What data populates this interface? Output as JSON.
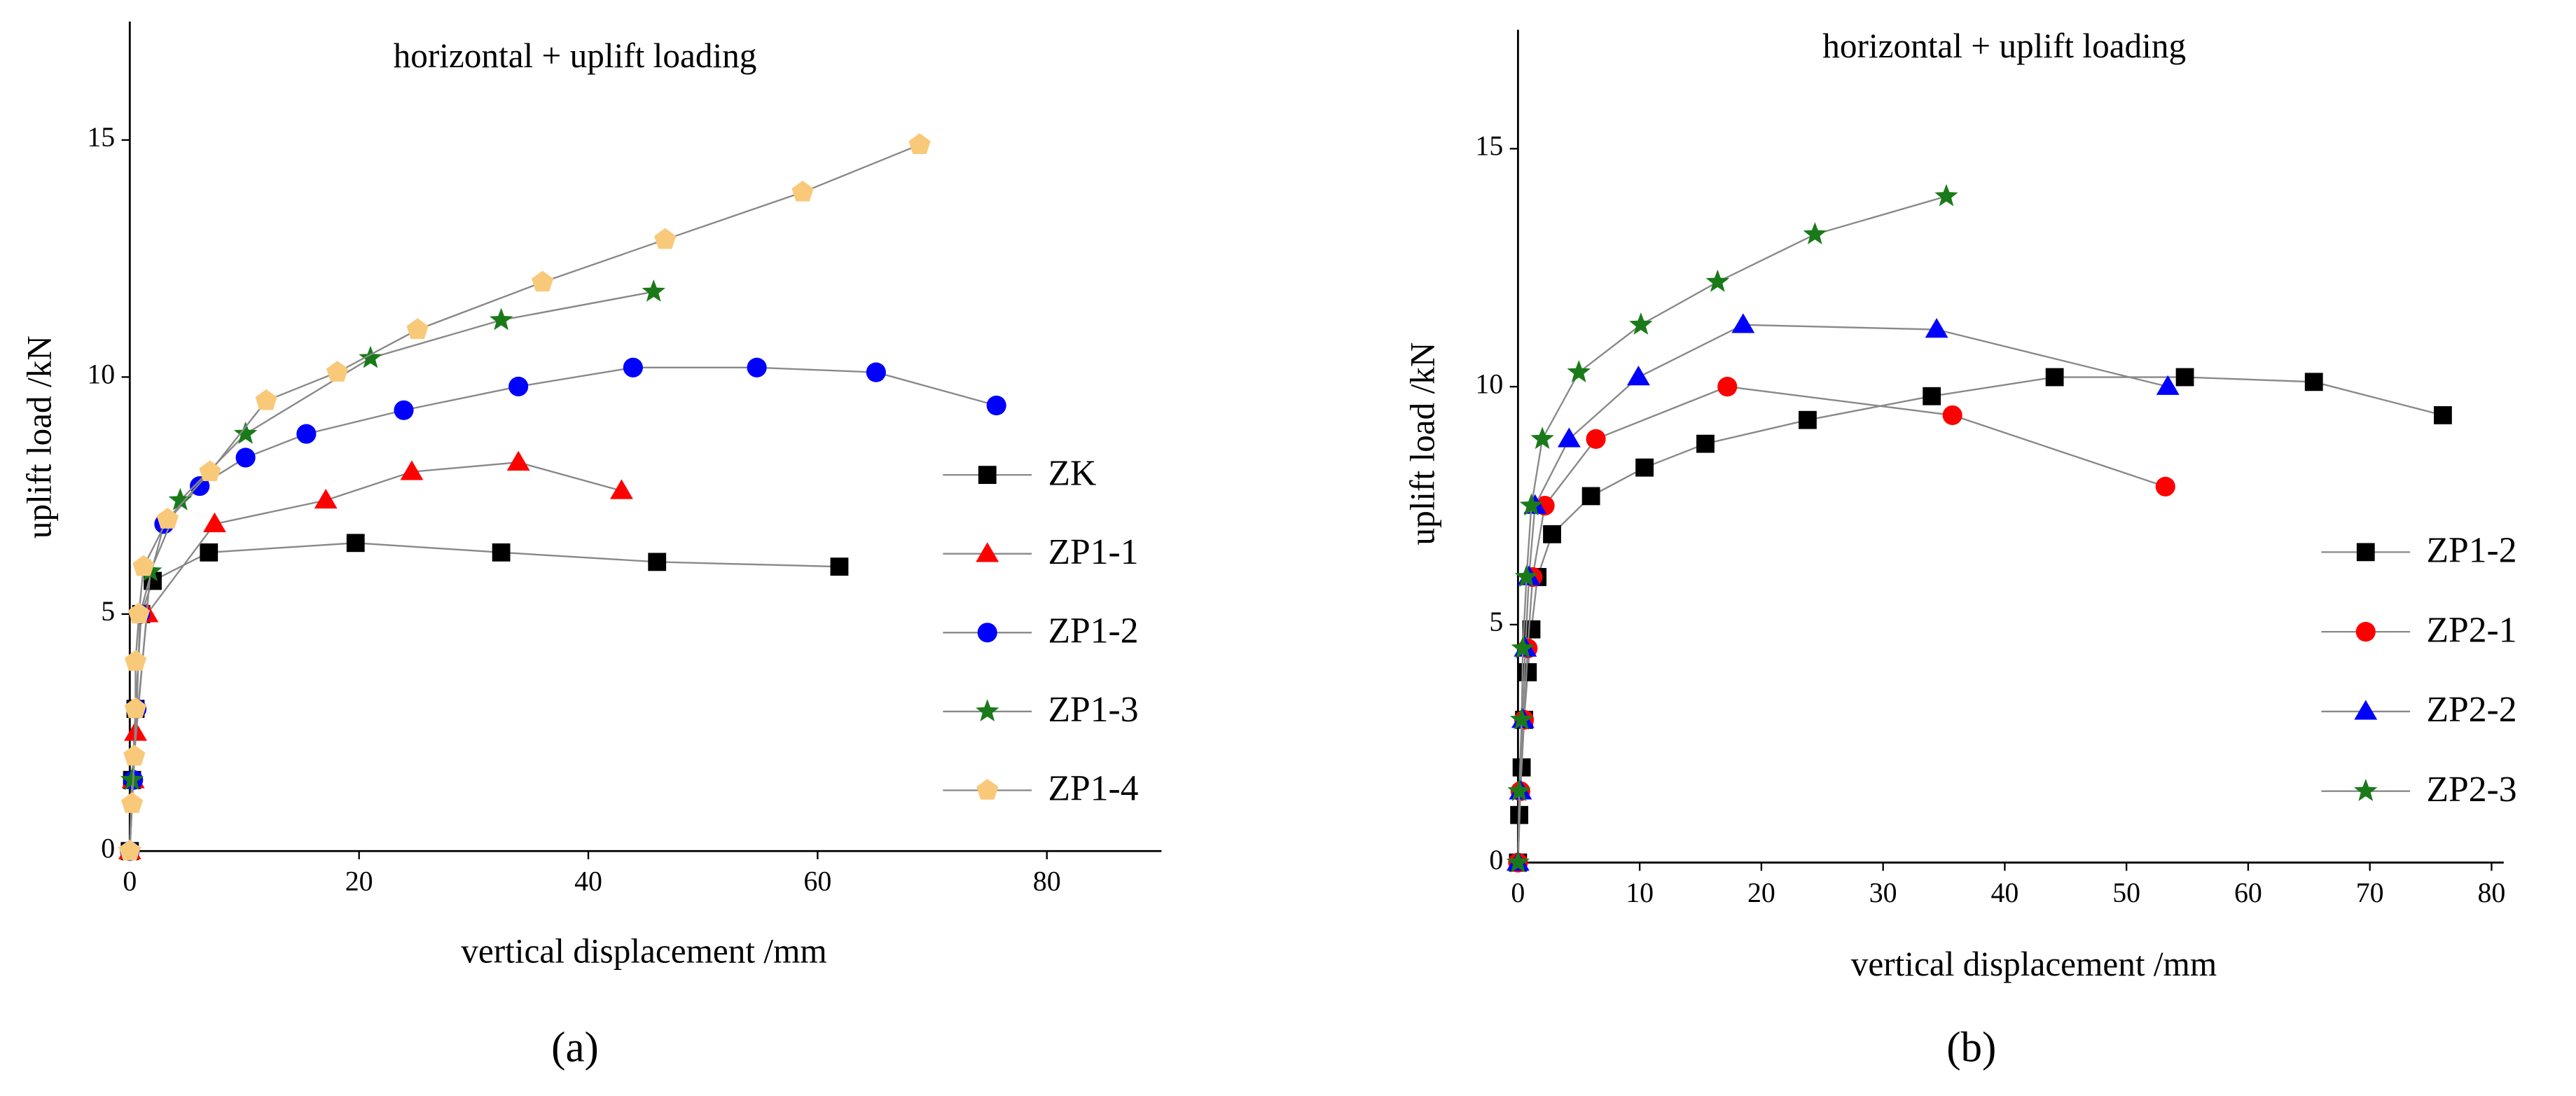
{
  "chart_data": [
    {
      "type": "line",
      "title": "horizontal + uplift loading",
      "x_label": "vertical displacement /mm",
      "y_label": "uplift load /kN",
      "caption": "(a)",
      "xlim": [
        0,
        90
      ],
      "ylim": [
        0,
        17.5
      ],
      "xticks": [
        0,
        20,
        40,
        60,
        80
      ],
      "yticks": [
        0,
        5,
        10,
        15
      ],
      "series": [
        {
          "name": "ZK",
          "color": "#000000",
          "marker": "square",
          "x": [
            0,
            0.2,
            0.5,
            1,
            2,
            6.9,
            19.7,
            32.4,
            46,
            61.9
          ],
          "values": [
            0,
            1.5,
            3,
            5,
            5.7,
            6.3,
            6.5,
            6.3,
            6.1,
            6.0
          ]
        },
        {
          "name": "ZP1-1",
          "color": "#ff0000",
          "marker": "triangle",
          "x": [
            0,
            0.3,
            0.5,
            1.5,
            7.4,
            17.1,
            24.6,
            33.9,
            42.9
          ],
          "values": [
            0,
            1.5,
            2.5,
            5,
            6.9,
            7.4,
            8.0,
            8.2,
            7.6
          ]
        },
        {
          "name": "ZP1-2",
          "color": "#0000ff",
          "marker": "circle",
          "x": [
            0,
            0.3,
            0.6,
            0.9,
            3,
            6.1,
            10.1,
            15.4,
            23.9,
            33.9,
            43.9,
            54.7,
            65.1,
            75.6
          ],
          "values": [
            0,
            1.5,
            3,
            5,
            6.9,
            7.7,
            8.3,
            8.8,
            9.3,
            9.8,
            10.2,
            10.2,
            10.1,
            9.4
          ]
        },
        {
          "name": "ZP1-3",
          "color": "#1a7a1a",
          "marker": "star",
          "x": [
            0,
            0.2,
            1.8,
            4.4,
            10.1,
            21,
            32.4,
            45.7
          ],
          "values": [
            0,
            1.5,
            5.9,
            7.4,
            8.8,
            10.4,
            11.2,
            11.8
          ]
        },
        {
          "name": "ZP1-4",
          "color": "#f9c97a",
          "marker": "pentagon",
          "x": [
            0,
            0.2,
            0.4,
            0.5,
            0.5,
            0.8,
            1.2,
            3.3,
            7,
            11.9,
            18.1,
            25.1,
            36,
            46.7,
            58.7,
            68.9
          ],
          "values": [
            0,
            1,
            2,
            3,
            4,
            5,
            6,
            7,
            8,
            9.5,
            10.1,
            11,
            12,
            12.9,
            13.9,
            14.9
          ]
        }
      ]
    },
    {
      "type": "line",
      "title": "horizontal + uplift loading",
      "x_label": "vertical displacement /mm",
      "y_label": "uplift load /kN",
      "caption": "(b)",
      "xlim": [
        0,
        81
      ],
      "ylim": [
        0,
        17.5
      ],
      "xticks": [
        0,
        10,
        20,
        30,
        40,
        50,
        60,
        70,
        80
      ],
      "yticks": [
        0,
        5,
        10,
        15
      ],
      "series": [
        {
          "name": "ZP1-2",
          "color": "#000000",
          "marker": "square",
          "x": [
            0,
            0.1,
            0.3,
            0.5,
            0.8,
            1.1,
            1.6,
            2.8,
            6,
            10.4,
            15.4,
            23.8,
            34,
            44.1,
            54.8,
            65.4,
            76
          ],
          "values": [
            0,
            1,
            2,
            3,
            4,
            4.9,
            6,
            6.9,
            7.7,
            8.3,
            8.8,
            9.3,
            9.8,
            10.2,
            10.2,
            10.1,
            9.4
          ]
        },
        {
          "name": "ZP2-1",
          "color": "#ff0000",
          "marker": "circle",
          "x": [
            0,
            0.2,
            0.5,
            0.8,
            1.2,
            2.2,
            6.4,
            17.2,
            35.7,
            53.2
          ],
          "values": [
            0,
            1.5,
            3,
            4.5,
            6,
            7.5,
            8.9,
            10,
            9.4,
            7.9
          ]
        },
        {
          "name": "ZP2-2",
          "color": "#0000ff",
          "marker": "triangle",
          "x": [
            0,
            0.2,
            0.4,
            0.6,
            0.9,
            1.4,
            4.2,
            9.9,
            18.5,
            34.4,
            53.4
          ],
          "values": [
            0,
            1.5,
            3,
            4.5,
            6,
            7.5,
            8.9,
            10.2,
            11.3,
            11.2,
            10
          ]
        },
        {
          "name": "ZP2-3",
          "color": "#1a7a1a",
          "marker": "star",
          "x": [
            0,
            0.1,
            0.3,
            0.4,
            0.7,
            1.1,
            2,
            5,
            10.1,
            16.4,
            24.4,
            35.2
          ],
          "values": [
            0,
            1.5,
            3,
            4.5,
            6,
            7.5,
            8.9,
            10.3,
            11.3,
            12.2,
            13.2,
            14
          ]
        }
      ]
    }
  ]
}
